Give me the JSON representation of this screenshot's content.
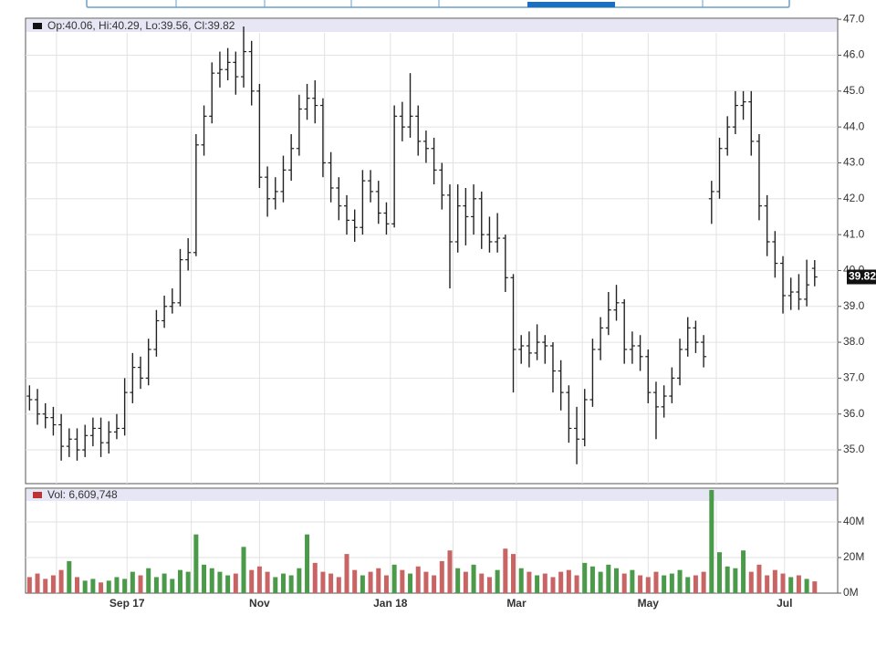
{
  "chart_data": {
    "type": "ohlc",
    "legend": "Op:40.06, Hi:40.29, Lo:39.56, Cl:39.82",
    "color": "#222222",
    "grid": true,
    "open": [
      36.5,
      36.4,
      36.0,
      35.9,
      35.7,
      35.1,
      35.3,
      35.0,
      35.4,
      35.6,
      35.2,
      35.5,
      35.6,
      36.6,
      37.3,
      37.0,
      37.8,
      38.6,
      39.0,
      39.1,
      40.3,
      40.5,
      43.5,
      44.3,
      45.5,
      45.6,
      45.8,
      45.4,
      46.1,
      45.0,
      42.6,
      42.0,
      42.2,
      42.8,
      43.4,
      44.5,
      44.8,
      44.6,
      43.0,
      42.3,
      41.8,
      41.4,
      41.2,
      42.5,
      42.2,
      41.6,
      41.3,
      44.3,
      44.0,
      44.3,
      43.6,
      43.4,
      42.8,
      42.1,
      40.8,
      41.8,
      41.5,
      42.0,
      41.0,
      40.8,
      40.9,
      39.8,
      37.8,
      37.9,
      37.7,
      38.0,
      37.9,
      37.2,
      36.6,
      35.6,
      35.3,
      36.4,
      37.8,
      38.4,
      38.9,
      39.1,
      37.8,
      37.9,
      37.6,
      36.6,
      36.2,
      36.5,
      37.0,
      37.8,
      38.4,
      38.0,
      42.0,
      42.2,
      43.4,
      44.0,
      44.6,
      44.7,
      43.6,
      41.8,
      40.8,
      40.2,
      39.3,
      39.4,
      39.2,
      40.06
    ],
    "high": [
      36.8,
      36.7,
      36.3,
      36.2,
      36.0,
      35.6,
      35.6,
      35.7,
      35.9,
      35.9,
      35.8,
      36.0,
      37.0,
      37.7,
      37.6,
      38.1,
      38.9,
      39.3,
      39.5,
      40.6,
      40.9,
      43.8,
      44.6,
      45.8,
      46.1,
      46.2,
      46.1,
      46.8,
      46.4,
      45.2,
      42.9,
      42.6,
      43.2,
      43.8,
      44.9,
      45.2,
      45.3,
      44.8,
      43.3,
      42.6,
      42.1,
      41.7,
      42.8,
      42.8,
      42.5,
      41.9,
      44.6,
      44.7,
      45.5,
      44.6,
      43.9,
      43.7,
      43.0,
      42.4,
      42.4,
      42.3,
      42.4,
      42.2,
      41.5,
      41.6,
      41.0,
      39.9,
      38.2,
      38.3,
      38.5,
      38.2,
      38.0,
      37.5,
      36.8,
      36.2,
      36.7,
      38.1,
      38.7,
      39.4,
      39.6,
      39.2,
      38.3,
      38.2,
      37.8,
      36.9,
      36.8,
      37.3,
      38.1,
      38.7,
      38.6,
      38.2,
      42.5,
      43.7,
      44.3,
      45.0,
      45.0,
      45.0,
      43.8,
      42.1,
      41.1,
      40.4,
      39.8,
      39.9,
      40.3,
      40.29
    ],
    "low": [
      36.1,
      35.7,
      35.6,
      35.4,
      34.7,
      34.8,
      34.7,
      34.8,
      35.1,
      34.8,
      34.9,
      35.3,
      35.4,
      36.3,
      36.7,
      36.8,
      37.6,
      38.4,
      38.8,
      39.0,
      40.0,
      40.4,
      43.2,
      44.1,
      45.1,
      45.3,
      44.9,
      45.1,
      44.6,
      42.3,
      41.5,
      41.7,
      41.9,
      42.5,
      43.2,
      44.2,
      44.1,
      42.6,
      41.9,
      41.4,
      41.0,
      40.8,
      41.0,
      41.9,
      41.3,
      41.0,
      41.2,
      43.6,
      43.7,
      43.2,
      43.0,
      42.4,
      41.7,
      39.5,
      40.5,
      40.7,
      41.0,
      40.6,
      40.5,
      40.5,
      39.4,
      36.6,
      37.4,
      37.3,
      37.5,
      37.4,
      36.6,
      36.1,
      35.2,
      34.6,
      35.1,
      36.2,
      37.5,
      38.2,
      38.6,
      37.4,
      37.4,
      37.2,
      36.3,
      35.3,
      35.9,
      36.3,
      36.8,
      37.6,
      37.7,
      37.3,
      41.3,
      42.0,
      43.2,
      43.8,
      44.2,
      43.2,
      41.4,
      40.4,
      39.8,
      38.8,
      38.9,
      38.9,
      39.0,
      39.56
    ],
    "close": [
      36.4,
      36.0,
      35.9,
      35.7,
      35.1,
      35.3,
      35.0,
      35.4,
      35.6,
      35.2,
      35.5,
      35.6,
      36.6,
      37.3,
      37.0,
      37.8,
      38.6,
      39.0,
      39.1,
      40.3,
      40.5,
      43.5,
      44.3,
      45.5,
      45.6,
      45.8,
      45.4,
      46.1,
      45.0,
      42.6,
      42.0,
      42.2,
      42.8,
      43.4,
      44.5,
      44.8,
      44.6,
      43.0,
      42.3,
      41.8,
      41.4,
      41.2,
      42.5,
      42.2,
      41.6,
      41.3,
      44.3,
      44.0,
      44.3,
      43.6,
      43.4,
      42.8,
      42.1,
      40.8,
      41.8,
      41.5,
      42.0,
      41.0,
      40.8,
      40.9,
      39.8,
      37.8,
      37.9,
      37.7,
      38.0,
      37.9,
      37.2,
      36.6,
      35.6,
      35.3,
      36.4,
      37.8,
      38.4,
      38.9,
      39.1,
      37.8,
      37.9,
      37.6,
      36.6,
      36.2,
      36.5,
      37.0,
      37.8,
      38.4,
      38.0,
      37.6,
      42.2,
      43.4,
      44.0,
      44.6,
      44.7,
      43.6,
      41.8,
      40.8,
      40.2,
      39.3,
      39.4,
      39.2,
      39.6,
      39.82
    ],
    "xlim": [
      -0.5,
      101.9
    ],
    "xticks": [
      {
        "value": 3.4,
        "label": null
      },
      {
        "value": 12.3,
        "label": "Sep 17"
      },
      {
        "value": 20.4,
        "label": null
      },
      {
        "value": 29,
        "label": "Nov"
      },
      {
        "value": 37.2,
        "label": null
      },
      {
        "value": 45.5,
        "label": "Jan 18"
      },
      {
        "value": 53.4,
        "label": null
      },
      {
        "value": 61.4,
        "label": "Mar"
      },
      {
        "value": 69.7,
        "label": null
      },
      {
        "value": 78,
        "label": "May"
      },
      {
        "value": 86.6,
        "label": null
      },
      {
        "value": 95.2,
        "label": "Jul"
      }
    ],
    "ylim": [
      34.06,
      47.03
    ],
    "yticks": [
      {
        "value": 35,
        "label": "35.0"
      },
      {
        "value": 36,
        "label": "36.0"
      },
      {
        "value": 37,
        "label": "37.0"
      },
      {
        "value": 38,
        "label": "38.0"
      },
      {
        "value": 39,
        "label": "39.0"
      },
      {
        "value": 40,
        "label": "40.0"
      },
      {
        "value": 41,
        "label": "41.0"
      },
      {
        "value": 42,
        "label": "42.0"
      },
      {
        "value": 43,
        "label": "43.0"
      },
      {
        "value": 44,
        "label": "44.0"
      },
      {
        "value": 45,
        "label": "45.0"
      },
      {
        "value": 46,
        "label": "46.0"
      },
      {
        "value": 47,
        "label": "47.0"
      }
    ],
    "volume": {
      "legend": "Vol: 6,609,748",
      "up_color": "#4a9a4a",
      "down_color": "#c86464",
      "values": [
        9,
        11,
        8,
        10,
        13,
        18,
        9,
        7,
        8,
        6,
        7,
        9,
        8,
        12,
        10,
        14,
        9,
        11,
        8,
        13,
        12,
        33,
        16,
        14,
        12,
        10,
        11,
        26,
        13,
        15,
        12,
        9,
        11,
        10,
        14,
        33,
        17,
        12,
        11,
        9,
        22,
        13,
        10,
        12,
        14,
        10,
        16,
        13,
        11,
        15,
        12,
        10,
        18,
        24,
        14,
        12,
        16,
        11,
        9,
        13,
        25,
        22,
        14,
        12,
        10,
        11,
        9,
        12,
        13,
        10,
        17,
        15,
        12,
        16,
        14,
        11,
        13,
        10,
        9,
        12,
        10,
        11,
        13,
        9,
        10,
        12,
        58,
        23,
        15,
        14,
        24,
        12,
        16,
        10,
        13,
        11,
        9,
        10,
        8,
        6.6
      ],
      "ylim": [
        0,
        59
      ],
      "yticks": [
        {
          "value": 0,
          "label": "0M"
        },
        {
          "value": 20,
          "label": "20M"
        },
        {
          "value": 40,
          "label": "40M"
        }
      ]
    }
  }
}
